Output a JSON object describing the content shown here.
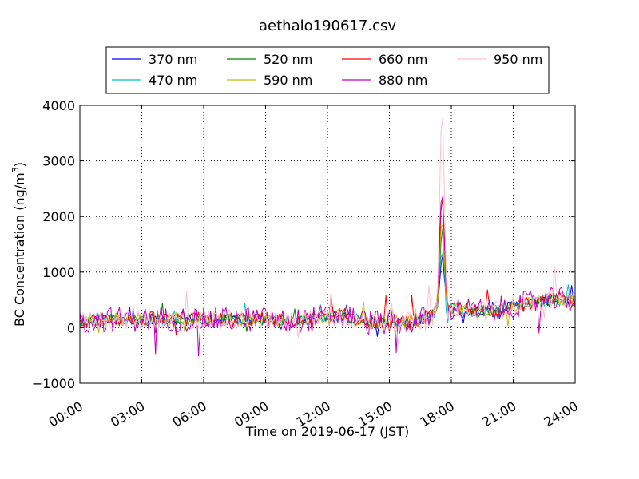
{
  "chart_data": {
    "type": "line",
    "title": "aethalo190617.csv",
    "xlabel": "Time on 2019-06-17 (JST)",
    "ylabel_main": "BC Concentration (ng/m",
    "ylabel_sup": "3",
    "ylabel_close": ")",
    "xlim_hours": [
      0,
      24
    ],
    "ylim": [
      -1000,
      4000
    ],
    "x_ticks": [
      "00:00",
      "03:00",
      "06:00",
      "09:00",
      "12:00",
      "15:00",
      "18:00",
      "21:00",
      "24:00"
    ],
    "y_ticks": [
      "−1000",
      "0",
      "1000",
      "2000",
      "3000",
      "4000"
    ],
    "grid": true,
    "legend_position": "top-center",
    "series": [
      {
        "name": "370 nm",
        "color": "#0000ff",
        "base": [
          100,
          150,
          150,
          150,
          150,
          150,
          150,
          150,
          150,
          150,
          100,
          150,
          200,
          200,
          100,
          100,
          100,
          200,
          350,
          300,
          300,
          400,
          450,
          500,
          500
        ],
        "noise": 90,
        "spike": 1100
      },
      {
        "name": "470 nm",
        "color": "#00bfbf",
        "base": [
          100,
          150,
          150,
          150,
          150,
          150,
          150,
          150,
          150,
          150,
          100,
          150,
          200,
          200,
          100,
          100,
          100,
          200,
          350,
          300,
          300,
          400,
          450,
          500,
          500
        ],
        "noise": 100,
        "spike": 1300
      },
      {
        "name": "520 nm",
        "color": "#008000",
        "base": [
          100,
          150,
          150,
          150,
          150,
          150,
          150,
          150,
          150,
          150,
          100,
          150,
          200,
          200,
          100,
          100,
          100,
          200,
          350,
          300,
          300,
          400,
          450,
          500,
          500
        ],
        "noise": 110,
        "spike": 1600
      },
      {
        "name": "590 nm",
        "color": "#bfbf00",
        "base": [
          100,
          150,
          150,
          150,
          150,
          150,
          150,
          150,
          150,
          150,
          100,
          150,
          200,
          200,
          100,
          100,
          100,
          200,
          350,
          300,
          300,
          400,
          450,
          500,
          500
        ],
        "noise": 120,
        "spike": 1800
      },
      {
        "name": "660 nm",
        "color": "#ff0000",
        "base": [
          100,
          150,
          150,
          150,
          150,
          150,
          150,
          150,
          150,
          150,
          100,
          150,
          200,
          200,
          100,
          100,
          100,
          200,
          350,
          300,
          300,
          400,
          450,
          500,
          500
        ],
        "noise": 140,
        "spike": 2300
      },
      {
        "name": "880 nm",
        "color": "#bf00bf",
        "base": [
          100,
          150,
          150,
          150,
          150,
          150,
          150,
          150,
          150,
          150,
          100,
          150,
          200,
          200,
          100,
          100,
          100,
          200,
          350,
          300,
          300,
          400,
          450,
          500,
          500
        ],
        "noise": 230,
        "spike": 2600
      },
      {
        "name": "950 nm",
        "color": "#ffc0cb",
        "base": [
          100,
          150,
          150,
          150,
          150,
          150,
          150,
          150,
          150,
          150,
          100,
          150,
          200,
          200,
          100,
          100,
          100,
          200,
          350,
          300,
          300,
          400,
          450,
          500,
          500
        ],
        "noise": 180,
        "spike": 3850
      }
    ],
    "spike_hour": 17.55
  }
}
